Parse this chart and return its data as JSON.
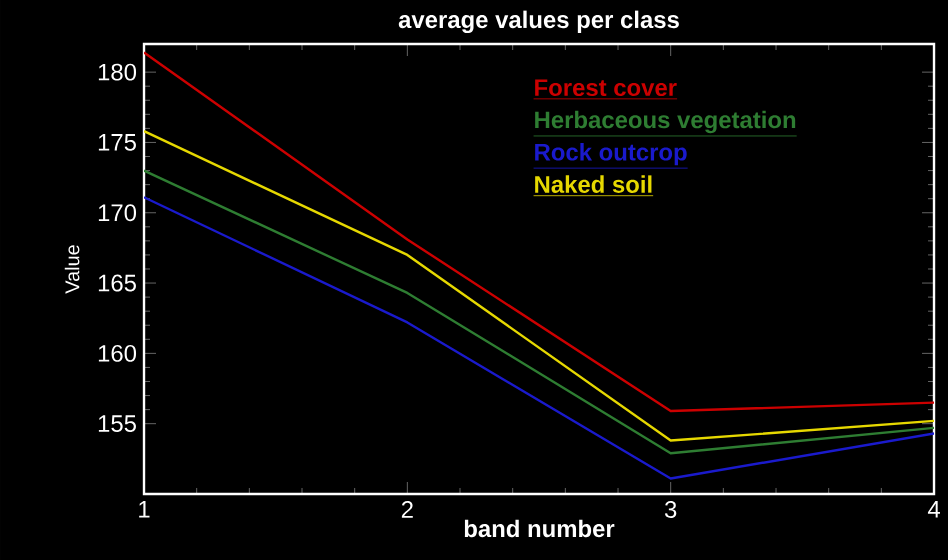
{
  "chart_data": {
    "type": "line",
    "title": "average values per class",
    "xlabel": "band number",
    "ylabel": "Value",
    "x": [
      1,
      2,
      3,
      4
    ],
    "xlim": [
      1,
      4
    ],
    "xticks": [
      1,
      2,
      3,
      4
    ],
    "ylim": [
      150,
      182
    ],
    "yticks": [
      155,
      160,
      165,
      170,
      175,
      180
    ],
    "grid": false,
    "legend": "top right",
    "marker": "none",
    "line_style": "solid",
    "series": [
      {
        "name": "Forest cover",
        "color": "#cc0000",
        "values": [
          181.4,
          168.1,
          155.9,
          156.5
        ]
      },
      {
        "name": "Herbaceous vegetation",
        "color": "#2e7d32",
        "values": [
          173,
          164.3,
          152.9,
          154.7
        ]
      },
      {
        "name": "Rock outcrop",
        "color": "#1a1acc",
        "values": [
          171.1,
          162.2,
          151.1,
          154.3
        ]
      },
      {
        "name": "Naked soil",
        "color": "#e6d800",
        "values": [
          175.8,
          167,
          153.8,
          155.2
        ]
      }
    ]
  }
}
